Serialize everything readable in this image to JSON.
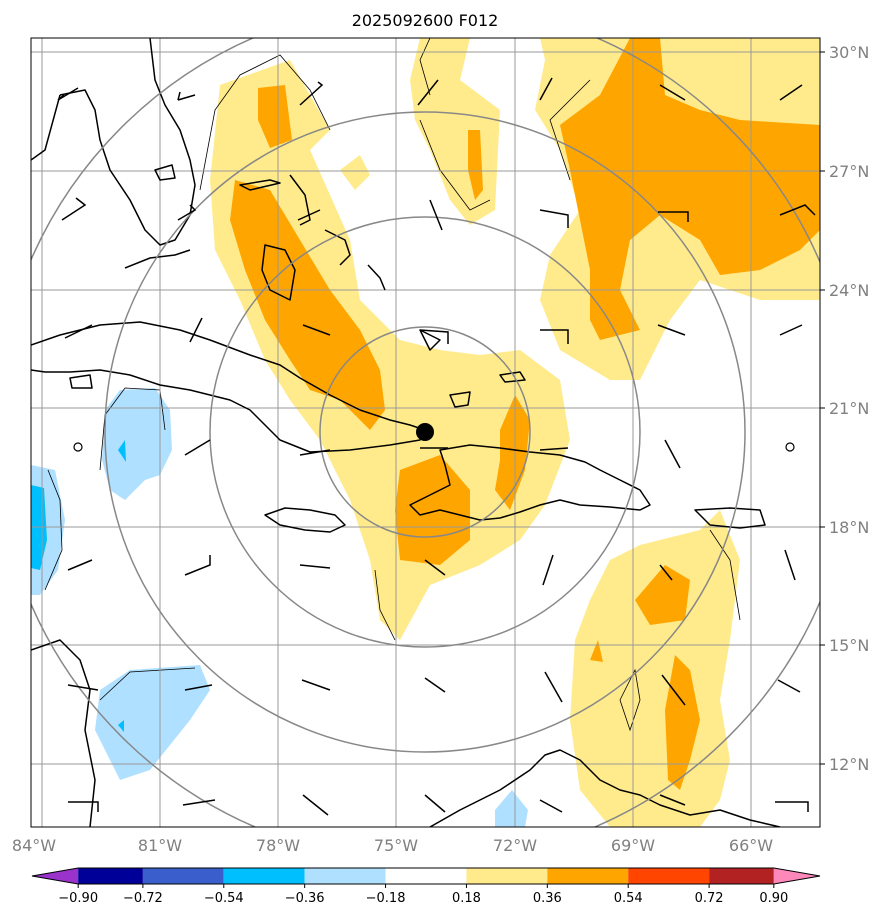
{
  "title": "2025092600 F012",
  "lat_ticks": [
    "30°N",
    "27°N",
    "24°N",
    "21°N",
    "18°N",
    "15°N",
    "12°N"
  ],
  "lon_ticks": [
    "84°W",
    "81°W",
    "78°W",
    "75°W",
    "72°W",
    "69°W",
    "66°W"
  ],
  "colorbar": {
    "labels": [
      "−0.90",
      "−0.72",
      "−0.54",
      "−0.36",
      "−0.18",
      "0.18",
      "0.36",
      "0.54",
      "0.72",
      "0.90"
    ],
    "colors": [
      "#9933cc",
      "#000099",
      "#3a5fcd",
      "#00bfff",
      "#b0e0ff",
      "#ffffff",
      "#ffeb8c",
      "#ffa500",
      "#ff4500",
      "#b22222",
      "#ff88bb"
    ]
  },
  "map": {
    "center_marker": "storm-center",
    "field_colors": {
      "light_yellow": "#ffeb8c",
      "orange": "#ffa500",
      "light_blue": "#b0e0ff",
      "cyan": "#00bfff"
    },
    "gridline_color": "#999999",
    "range_ring_color": "#888888"
  }
}
